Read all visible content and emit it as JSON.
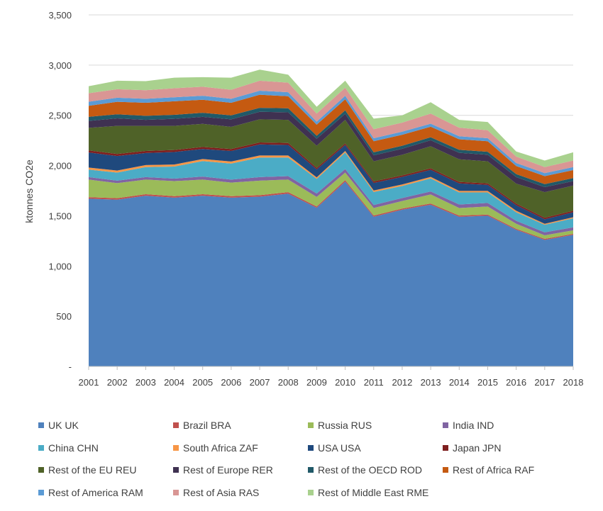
{
  "chart_data": {
    "type": "area",
    "stacked": true,
    "title": "",
    "xlabel": "",
    "ylabel": "ktonnes CO2e",
    "ylim": [
      0,
      3500
    ],
    "yticks": [
      0,
      500,
      1000,
      1500,
      2000,
      2500,
      3000,
      3500
    ],
    "ytick_labels": [
      "-",
      "500",
      "1,000",
      "1,500",
      "2,000",
      "2,500",
      "3,000",
      "3,500"
    ],
    "grid": "horizontal",
    "legend_position": "bottom",
    "categories": [
      "2001",
      "2002",
      "2003",
      "2004",
      "2005",
      "2006",
      "2007",
      "2008",
      "2009",
      "2010",
      "2011",
      "2012",
      "2013",
      "2014",
      "2015",
      "2016",
      "2017",
      "2018"
    ],
    "series": [
      {
        "name": "UK UK",
        "color": "#4F81BD",
        "values": [
          1670,
          1660,
          1700,
          1680,
          1700,
          1680,
          1690,
          1720,
          1580,
          1840,
          1490,
          1560,
          1610,
          1490,
          1500,
          1360,
          1260,
          1310
        ]
      },
      {
        "name": "Brazil BRA",
        "color": "#C0504D",
        "values": [
          15,
          15,
          15,
          15,
          15,
          15,
          15,
          15,
          12,
          15,
          12,
          12,
          12,
          12,
          12,
          10,
          10,
          10
        ]
      },
      {
        "name": "Russia RUS",
        "color": "#9BBB59",
        "values": [
          175,
          150,
          145,
          150,
          145,
          135,
          145,
          125,
          95,
          75,
          75,
          75,
          90,
          75,
          80,
          50,
          35,
          35
        ]
      },
      {
        "name": "India IND",
        "color": "#8064A2",
        "values": [
          25,
          25,
          25,
          25,
          30,
          30,
          35,
          35,
          35,
          35,
          30,
          30,
          30,
          35,
          35,
          30,
          30,
          30
        ]
      },
      {
        "name": "China CHN",
        "color": "#4BACC6",
        "values": [
          75,
          80,
          100,
          120,
          155,
          160,
          195,
          185,
          145,
          165,
          130,
          120,
          130,
          120,
          105,
          85,
          75,
          90
        ]
      },
      {
        "name": "South Africa ZAF",
        "color": "#F79646",
        "values": [
          20,
          20,
          20,
          20,
          20,
          20,
          20,
          20,
          15,
          15,
          15,
          15,
          15,
          15,
          15,
          15,
          10,
          10
        ]
      },
      {
        "name": "USA USA",
        "color": "#1F497D",
        "values": [
          150,
          145,
          120,
          125,
          100,
          105,
          110,
          105,
          80,
          60,
          75,
          75,
          70,
          75,
          60,
          55,
          45,
          50
        ]
      },
      {
        "name": "Japan JPN",
        "color": "#7F1F1F",
        "values": [
          20,
          20,
          20,
          20,
          20,
          20,
          20,
          20,
          15,
          15,
          15,
          15,
          15,
          15,
          15,
          15,
          15,
          15
        ]
      },
      {
        "name": "Rest of the EU REU",
        "color": "#4F6228",
        "values": [
          225,
          280,
          250,
          240,
          230,
          220,
          230,
          230,
          220,
          235,
          200,
          205,
          220,
          225,
          220,
          200,
          255,
          250
        ]
      },
      {
        "name": "Rest of Europe RER",
        "color": "#3F3151",
        "values": [
          70,
          75,
          60,
          70,
          70,
          75,
          75,
          75,
          70,
          60,
          60,
          60,
          60,
          65,
          65,
          65,
          50,
          45
        ]
      },
      {
        "name": "Rest of the OECD ROD",
        "color": "#215968",
        "values": [
          40,
          40,
          40,
          40,
          40,
          40,
          40,
          40,
          30,
          35,
          30,
          30,
          30,
          30,
          30,
          30,
          30,
          30
        ]
      },
      {
        "name": "Rest of Africa RAF",
        "color": "#C55A11",
        "values": [
          110,
          125,
          130,
          135,
          130,
          125,
          130,
          120,
          110,
          110,
          110,
          110,
          105,
          105,
          105,
          80,
          80,
          80
        ]
      },
      {
        "name": "Rest of America RAM",
        "color": "#5B9BD5",
        "values": [
          40,
          40,
          40,
          40,
          40,
          40,
          40,
          40,
          30,
          35,
          30,
          30,
          30,
          30,
          30,
          30,
          30,
          30
        ]
      },
      {
        "name": "Rest of Asia RAS",
        "color": "#D99694",
        "values": [
          85,
          85,
          85,
          90,
          90,
          90,
          100,
          95,
          80,
          80,
          90,
          90,
          100,
          85,
          80,
          65,
          60,
          65
        ]
      },
      {
        "name": "Rest of Middle East RME",
        "color": "#A9D18E",
        "values": [
          70,
          85,
          90,
          105,
          95,
          120,
          110,
          80,
          68,
          70,
          105,
          73,
          113,
          78,
          82,
          50,
          65,
          82
        ]
      }
    ]
  }
}
